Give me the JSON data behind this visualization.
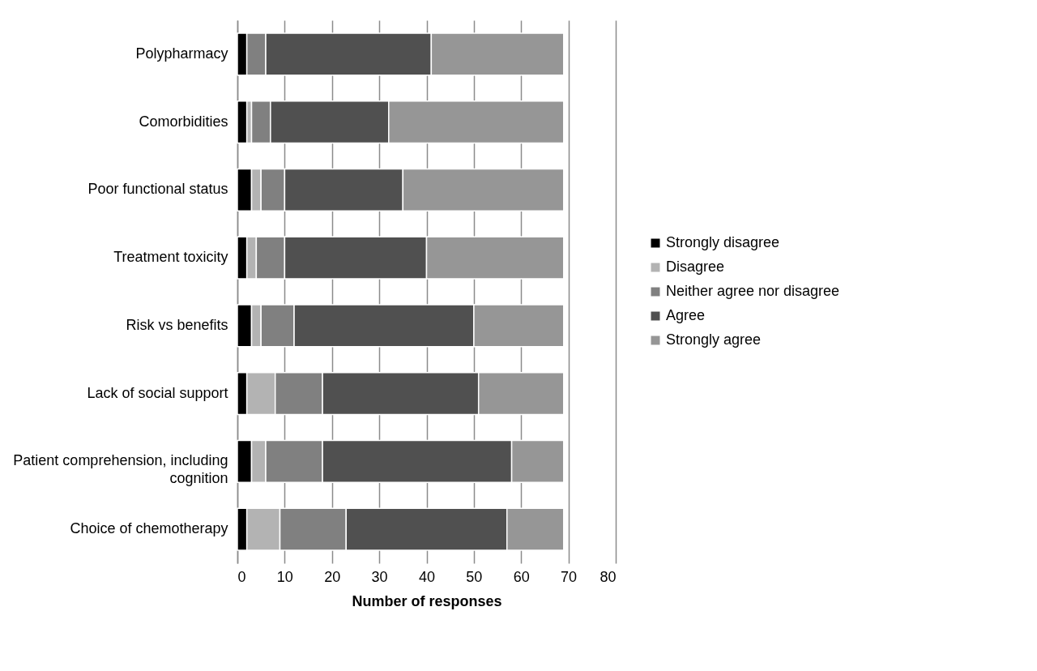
{
  "chart_data": {
    "type": "bar",
    "orientation": "horizontal",
    "stacked": true,
    "xlabel": "Number of responses",
    "categories": [
      "Polypharmacy",
      "Comorbidities",
      "Poor functional status",
      "Treatment toxicity",
      "Risk vs benefits",
      "Lack of social support",
      "Patient comprehension, including cognition",
      "Choice of chemotherapy"
    ],
    "series": [
      {
        "name": "Strongly disagree",
        "color": "#000000",
        "values": [
          2,
          2,
          3,
          2,
          3,
          2,
          3,
          2
        ]
      },
      {
        "name": "Disagree",
        "color": "#b3b3b3",
        "values": [
          0,
          1,
          2,
          2,
          2,
          6,
          3,
          7
        ]
      },
      {
        "name": "Neither agree nor disagree",
        "color": "#808080",
        "values": [
          4,
          4,
          5,
          6,
          7,
          10,
          12,
          14
        ]
      },
      {
        "name": "Agree",
        "color": "#505050",
        "values": [
          35,
          25,
          25,
          30,
          38,
          33,
          40,
          34
        ]
      },
      {
        "name": "Strongly agree",
        "color": "#969696",
        "values": [
          28,
          37,
          34,
          29,
          19,
          18,
          11,
          12
        ]
      }
    ],
    "xlim": [
      0,
      80
    ],
    "xticks": [
      0,
      10,
      20,
      30,
      40,
      50,
      60,
      70,
      80
    ],
    "grid": "x",
    "legend": "right"
  }
}
